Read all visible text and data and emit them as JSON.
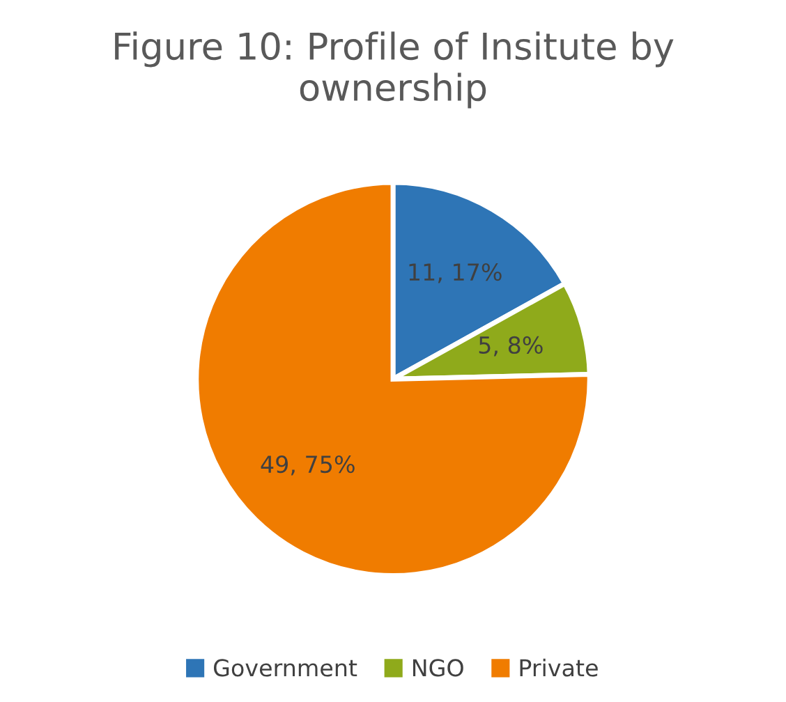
{
  "chart_data": {
    "type": "pie",
    "title": "Figure 10: Profile of Insitute by ownership",
    "categories": [
      "Government",
      "NGO",
      "Private"
    ],
    "values": [
      11,
      5,
      49
    ],
    "value_labels": [
      "11, 17%",
      "5, 8%",
      "49, 75%"
    ],
    "colors": [
      "#2e75b6",
      "#8faa1b",
      "#f07c00"
    ],
    "legend": "bottom"
  }
}
